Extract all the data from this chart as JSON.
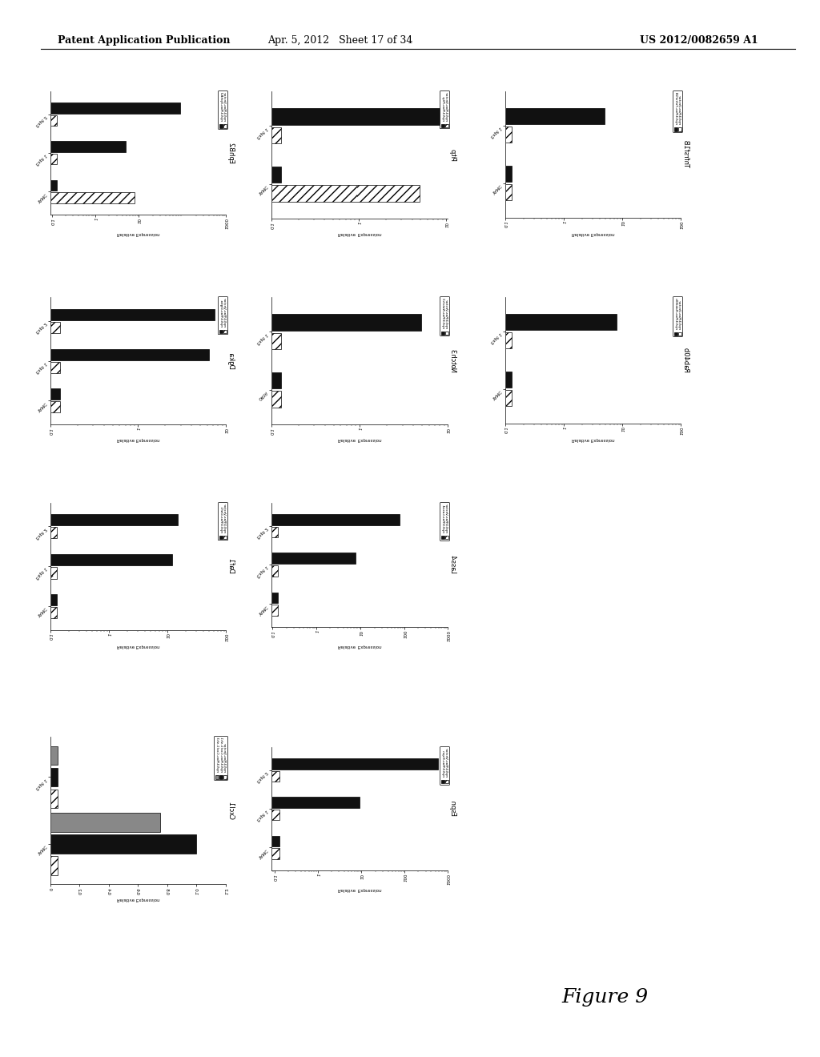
{
  "header_left": "Patent Application Publication",
  "header_mid": "Apr. 5, 2012   Sheet 17 of 34",
  "header_right": "US 2012/0082659 A1",
  "figure_label": "Figure 9",
  "charts": [
    {
      "title": "EphB2",
      "xlabel": "Relative Expression",
      "xscale": "log",
      "xticks": [
        0.1,
        1,
        10,
        1000
      ],
      "xtick_labels": [
        "0.1",
        "1",
        "10",
        "1000"
      ],
      "groups": [
        "YAMC",
        "Expt 1",
        "Expt 2"
      ],
      "series": [
        {
          "label": "mp53/Ras-Vector",
          "color": "white",
          "hatch": "///",
          "values": [
            8.0,
            0.13,
            0.13
          ]
        },
        {
          "label": "mp53/Ras-EphB2",
          "color": "black",
          "hatch": "",
          "values": [
            0.13,
            5.0,
            90.0
          ]
        }
      ]
    },
    {
      "title": "Dgka",
      "xlabel": "Relative Expression",
      "xscale": "log",
      "xticks": [
        0.1,
        1,
        10
      ],
      "xtick_labels": [
        "0.1",
        "1",
        "10"
      ],
      "groups": [
        "YAMC",
        "Expt 1",
        "Expt 2"
      ],
      "series": [
        {
          "label": "mp53/Ras-Vector",
          "color": "white",
          "hatch": "///",
          "values": [
            0.13,
            0.13,
            0.13
          ]
        },
        {
          "label": "mp53/Ras-Dgka",
          "color": "black",
          "hatch": "",
          "values": [
            0.13,
            6.5,
            7.5
          ]
        }
      ]
    },
    {
      "title": "Daf1",
      "xlabel": "Relative Expression",
      "xscale": "log",
      "xticks": [
        0.1,
        1,
        10,
        100
      ],
      "xtick_labels": [
        "0.1",
        "1",
        "10",
        "100"
      ],
      "groups": [
        "YAMC",
        "Expt 1",
        "Expt 2"
      ],
      "series": [
        {
          "label": "mp53/Ras-Vector",
          "color": "white",
          "hatch": "///",
          "values": [
            0.13,
            0.13,
            0.13
          ]
        },
        {
          "label": "mp53/Ras-Daf1",
          "color": "black",
          "hatch": "",
          "values": [
            0.13,
            12.0,
            15.0
          ]
        }
      ]
    },
    {
      "title": "Cxcl1",
      "xlabel": "Relative Expression",
      "xscale": "linear",
      "xticks": [
        0,
        0.2,
        0.4,
        0.6,
        0.8,
        1.0,
        1.2
      ],
      "xtick_labels": [
        "0",
        "0.2",
        "0.4",
        "0.6",
        "0.8",
        "1.0",
        "1.2"
      ],
      "groups": [
        "YAMC",
        "Expt 1"
      ],
      "series": [
        {
          "label": "mp53/Ras-Vector",
          "color": "white",
          "hatch": "///",
          "values": [
            0.05,
            0.05
          ]
        },
        {
          "label": "mp53/Ras-Cxcl1-sh1",
          "color": "black",
          "hatch": "",
          "values": [
            1.0,
            0.05
          ]
        },
        {
          "label": "mp53/Ras-Cxcl1-sh3",
          "color": "gray",
          "hatch": "",
          "values": [
            0.75,
            0.05
          ]
        }
      ]
    },
    {
      "title": "Pitp",
      "xlabel": "Relative Expression",
      "xscale": "log",
      "xticks": [
        0.1,
        1,
        10
      ],
      "xtick_labels": [
        "0.1",
        "1",
        "10"
      ],
      "groups": [
        "YAMC",
        "Expt 1"
      ],
      "series": [
        {
          "label": "mp53/Ras-Vector",
          "color": "white",
          "hatch": "///",
          "values": [
            5.0,
            0.13
          ]
        },
        {
          "label": "mp53/Ras-Pitp",
          "color": "black",
          "hatch": "",
          "values": [
            0.13,
            8.5
          ]
        }
      ]
    },
    {
      "title": "Notch3",
      "xlabel": "Relative Expression",
      "xscale": "log",
      "xticks": [
        0.1,
        1,
        10
      ],
      "xtick_labels": [
        "0.1",
        "1",
        "10"
      ],
      "groups": [
        "ORYA",
        "Expt 1"
      ],
      "series": [
        {
          "label": "mp53/Ras-Vector",
          "color": "white",
          "hatch": "///",
          "values": [
            0.13,
            0.13
          ]
        },
        {
          "label": "mp53/Ras-Notch3",
          "color": "black",
          "hatch": "",
          "values": [
            0.13,
            5.0
          ]
        }
      ]
    },
    {
      "title": "Lass4",
      "xlabel": "Relative Expression",
      "xscale": "log",
      "xticks": [
        0.1,
        1,
        10,
        100,
        1000
      ],
      "xtick_labels": [
        "0.1",
        "1",
        "10",
        "100",
        "1000"
      ],
      "groups": [
        "YAMC",
        "Expt 1",
        "Expt 2"
      ],
      "series": [
        {
          "label": "mp53/Ras-Vector",
          "color": "white",
          "hatch": "///",
          "values": [
            0.13,
            0.13,
            0.13
          ]
        },
        {
          "label": "mp53/Ras-Lass4",
          "color": "black",
          "hatch": "",
          "values": [
            0.13,
            8.0,
            80.0
          ]
        }
      ]
    },
    {
      "title": "Espn",
      "xlabel": "Relative Expression",
      "xscale": "log",
      "xticks": [
        0.1,
        1,
        10,
        100,
        1000
      ],
      "xtick_labels": [
        "0.1",
        "1",
        "10",
        "100",
        "1000"
      ],
      "groups": [
        "YAMC",
        "Expt 1",
        "Expt 2"
      ],
      "series": [
        {
          "label": "mp53/Ras-Vector",
          "color": "white",
          "hatch": "///",
          "values": [
            0.13,
            0.13,
            0.13
          ]
        },
        {
          "label": "mp53/Ras-Espn",
          "color": "black",
          "hatch": "",
          "values": [
            0.13,
            9.0,
            600.0
          ]
        }
      ]
    },
    {
      "title": "Tnfrsf1B",
      "xlabel": "Relative Expression",
      "xscale": "log",
      "xticks": [
        0.1,
        1,
        10,
        100
      ],
      "xtick_labels": [
        "0.1",
        "1",
        "10",
        "100"
      ],
      "groups": [
        "YAMC",
        "Expt 1"
      ],
      "series": [
        {
          "label": "mp53/Ras-Vector",
          "color": "white",
          "hatch": "///",
          "values": [
            0.13,
            0.13
          ]
        },
        {
          "label": "mp53/Ras-Tnfrsf1B",
          "color": "black",
          "hatch": "",
          "values": [
            0.13,
            5.0
          ]
        }
      ]
    },
    {
      "title": "Rab40b",
      "xlabel": "Relative Expression",
      "xscale": "log",
      "xticks": [
        0.1,
        1,
        10,
        100
      ],
      "xtick_labels": [
        "0.1",
        "1",
        "10",
        "100"
      ],
      "groups": [
        "YAMC",
        "Expt 1"
      ],
      "series": [
        {
          "label": "mp53/Ras-Vector",
          "color": "white",
          "hatch": "///",
          "values": [
            0.13,
            0.13
          ]
        },
        {
          "label": "mp53/Ras-Rab40b",
          "color": "black",
          "hatch": "",
          "values": [
            0.13,
            8.0
          ]
        }
      ]
    }
  ]
}
